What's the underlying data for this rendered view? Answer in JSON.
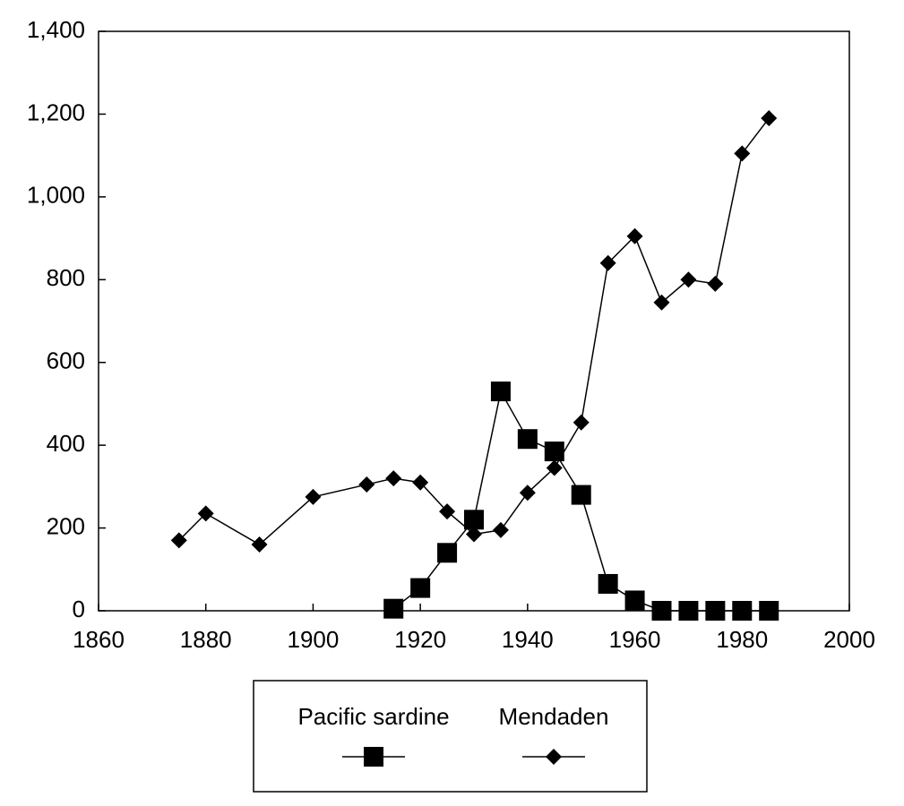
{
  "chart_data": {
    "type": "line",
    "x": [
      1875,
      1880,
      1890,
      1900,
      1910,
      1915,
      1920,
      1925,
      1930,
      1935,
      1940,
      1945,
      1950,
      1955,
      1960,
      1965,
      1970,
      1975,
      1980,
      1985
    ],
    "series": [
      {
        "name": "Pacific sardine",
        "color": "#000000",
        "marker": "square",
        "values": [
          null,
          null,
          null,
          null,
          null,
          5,
          55,
          140,
          220,
          530,
          415,
          385,
          280,
          65,
          25,
          0,
          0,
          0,
          0,
          0
        ]
      },
      {
        "name": "Mendaden",
        "color": "#000000",
        "marker": "diamond",
        "values": [
          170,
          235,
          160,
          275,
          305,
          320,
          310,
          240,
          185,
          195,
          285,
          345,
          455,
          840,
          905,
          745,
          800,
          790,
          1105,
          1190
        ]
      }
    ],
    "xlim": [
      1860,
      2000
    ],
    "xticks": [
      1860,
      1880,
      1900,
      1920,
      1940,
      1960,
      1980,
      2000
    ],
    "ylim": [
      0,
      1400
    ],
    "yticks": [
      0,
      200,
      400,
      600,
      800,
      {
        "value": 1000,
        "label": "1,000"
      },
      {
        "value": 1200,
        "label": "1,200"
      },
      {
        "value": 1400,
        "label": "1,400"
      }
    ],
    "grid": false,
    "legend": "bottom"
  }
}
